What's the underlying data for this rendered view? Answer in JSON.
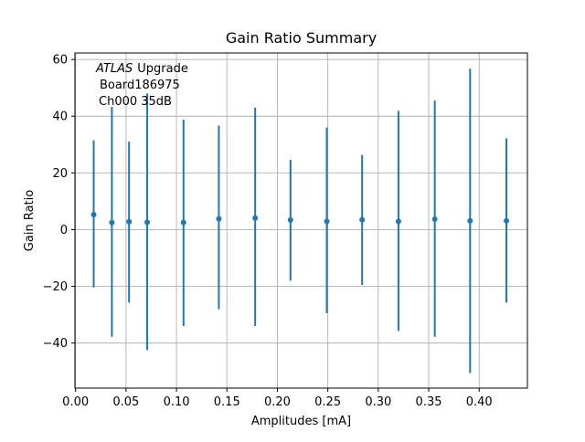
{
  "window": {
    "background": "#ffffff"
  },
  "chart_data": {
    "type": "scatter",
    "style": "errorbar",
    "title": "Gain Ratio Summary",
    "xlabel": "Amplitudes [mA]",
    "ylabel": "Gain Ratio",
    "x": [
      0.018,
      0.036,
      0.053,
      0.071,
      0.107,
      0.142,
      0.178,
      0.213,
      0.249,
      0.284,
      0.32,
      0.356,
      0.391,
      0.427
    ],
    "y": [
      5.3,
      2.5,
      2.8,
      2.6,
      2.5,
      3.8,
      4.1,
      3.4,
      2.9,
      3.5,
      2.9,
      3.7,
      3.1,
      3.1
    ],
    "y_upper": [
      31.5,
      43.3,
      31.0,
      48.0,
      38.8,
      36.7,
      43.0,
      24.6,
      36.0,
      26.3,
      41.9,
      45.5,
      56.8,
      32.2
    ],
    "y_lower": [
      -20.4,
      -37.8,
      -25.7,
      -42.5,
      -34.0,
      -28.1,
      -34.0,
      -18.0,
      -29.5,
      -19.5,
      -35.7,
      -37.8,
      -50.6,
      -25.7
    ],
    "xlim": [
      -0.0006,
      0.4478
    ],
    "ylim": [
      -55.9,
      62.3
    ],
    "x_ticks": [
      0.0,
      0.05,
      0.1,
      0.15,
      0.2,
      0.25,
      0.3,
      0.35,
      0.4
    ],
    "x_tick_labels": [
      "0.00",
      "0.05",
      "0.10",
      "0.15",
      "0.20",
      "0.25",
      "0.30",
      "0.35",
      "0.40"
    ],
    "y_ticks": [
      60,
      40,
      20,
      0,
      -20,
      -40
    ],
    "y_tick_labels": [
      "60",
      "40",
      "20",
      "0",
      "−20",
      "−40"
    ],
    "grid": true,
    "legend": false,
    "series_color": "#1f77b4",
    "grid_color": "#b0b0b0",
    "spine_color": "#000000",
    "annotation": {
      "line1_italic": "ATLAS",
      "line1_rest": "Upgrade",
      "line2": "Board186975",
      "line3": "Ch000 35dB"
    }
  }
}
